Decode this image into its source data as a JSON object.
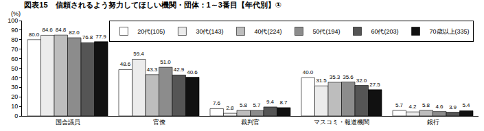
{
  "chart_data": {
    "type": "bar",
    "title": "図表15　信頼されるよう努力してほしい機関・団体：1～3番目【年代別】①",
    "y_label": "(%)",
    "categories": [
      "国会議員",
      "官僚",
      "裁判官",
      "マスコミ・報道機関",
      "銀行"
    ],
    "series": [
      {
        "name": "20代(105)",
        "color": "#ffffff",
        "values": [
          80.0,
          48.6,
          7.6,
          40.0,
          5.7
        ],
        "value_labels": [
          "80.0",
          "48.6",
          "7.6",
          "40.0",
          "5.7"
        ]
      },
      {
        "name": "30代(143)",
        "color": "#ececec",
        "values": [
          84.6,
          59.4,
          2.8,
          31.5,
          4.2
        ],
        "value_labels": [
          "84.6",
          "59.4",
          "2.8",
          "31.5",
          "4.2"
        ]
      },
      {
        "name": "40代(224)",
        "color": "#bdbdbd",
        "values": [
          84.8,
          43.3,
          5.8,
          35.3,
          5.8
        ],
        "value_labels": [
          "84.8",
          "43.3",
          "5.8",
          "35.3",
          "5.8"
        ]
      },
      {
        "name": "50代(194)",
        "color": "#8c8c8c",
        "values": [
          82.0,
          51.0,
          5.7,
          35.6,
          4.6
        ],
        "value_labels": [
          "82.0",
          "51.0",
          "5.7",
          "35.6",
          "4.6"
        ]
      },
      {
        "name": "60代(203)",
        "color": "#555555",
        "values": [
          76.8,
          42.9,
          9.4,
          32.0,
          3.9
        ],
        "value_labels": [
          "76.8",
          "42.9",
          "9.4",
          "32.0",
          "3.9"
        ]
      },
      {
        "name": "70歳以上(335)",
        "color": "#111111",
        "values": [
          77.9,
          40.6,
          8.7,
          27.5,
          5.4
        ],
        "value_labels": [
          "77.9",
          "40.6",
          "8.7",
          "27.5",
          "5.4"
        ]
      }
    ],
    "ylim": [
      0,
      100
    ],
    "yticks": [
      0,
      10,
      20,
      30,
      40,
      50,
      60,
      70,
      80,
      90,
      100
    ],
    "grid": false,
    "legend": "top right",
    "data_labels": true
  }
}
